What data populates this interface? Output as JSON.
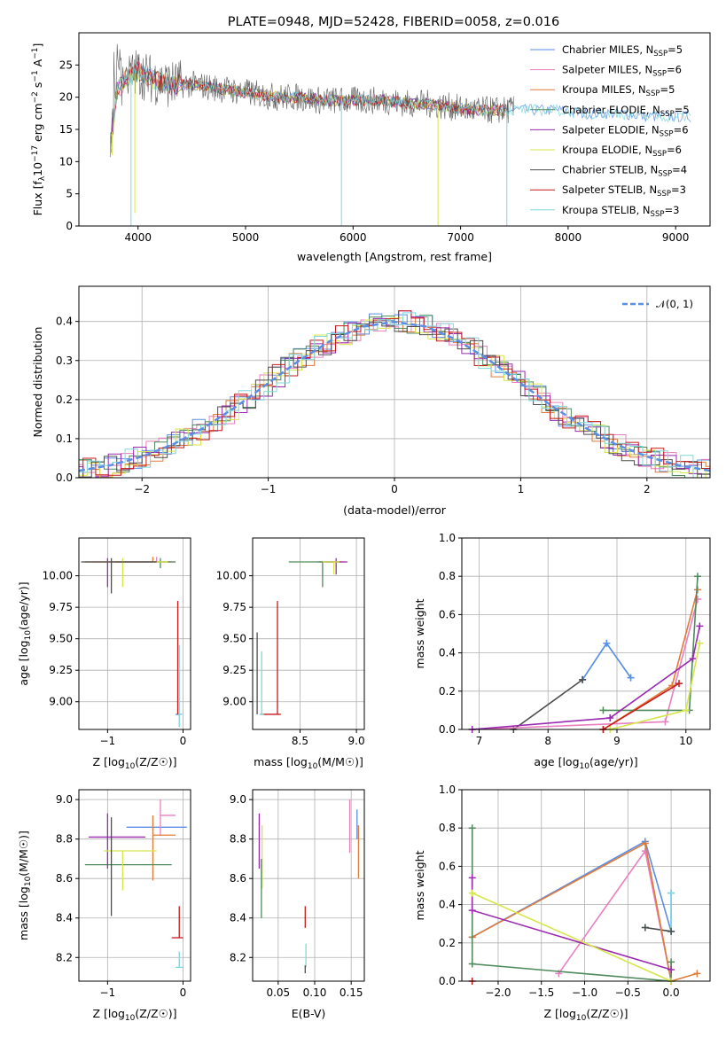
{
  "figure": {
    "title": "PLATE=0948, MJD=52428, FIBERID=0058, z=0.016"
  },
  "colors": {
    "Chabrier MILES": "#5b8ee6",
    "Salpeter MILES": "#e97fbf",
    "Kroupa MILES": "#e07b39",
    "Chabrier ELODIE": "#4f8a5b",
    "Salpeter ELODIE": "#9a2ab0",
    "Kroupa ELODIE": "#d7e64a",
    "Chabrier STELIB": "#4d4d4d",
    "Salpeter STELIB": "#c81a1a",
    "Kroupa STELIB": "#7fd8dc"
  },
  "legend1": [
    {
      "name": "Chabrier MILES",
      "n": "5"
    },
    {
      "name": "Salpeter MILES",
      "n": "6"
    },
    {
      "name": "Kroupa MILES",
      "n": "5"
    },
    {
      "name": "Chabrier ELODIE",
      "n": "5"
    },
    {
      "name": "Salpeter ELODIE",
      "n": "6"
    },
    {
      "name": "Kroupa ELODIE",
      "n": "6"
    },
    {
      "name": "Chabrier STELIB",
      "n": "4"
    },
    {
      "name": "Salpeter STELIB",
      "n": "3"
    },
    {
      "name": "Kroupa STELIB",
      "n": "3"
    }
  ],
  "chart_data": [
    {
      "type": "line",
      "panel": "spectrum",
      "title": "PLATE=0948, MJD=52428, FIBERID=0058, z=0.016",
      "xlabel": "wavelength [Angstrom, rest frame]",
      "ylabel": "Flux [f_λ 10^-17 erg cm^-2 s^-1 A^-1]",
      "xlim": [
        3450,
        9320
      ],
      "ylim": [
        0,
        30
      ],
      "xticks": [
        "4000",
        "5000",
        "6000",
        "7000",
        "8000",
        "9000"
      ],
      "yticks": [
        "0",
        "5",
        "10",
        "15",
        "20",
        "25"
      ],
      "data_x": [
        3750,
        3800,
        3900,
        4000,
        4100,
        4200,
        4300,
        4500,
        4700,
        4900,
        5100,
        5300,
        5500,
        5700,
        5900,
        6100,
        6300,
        6500,
        6700,
        6900,
        7100,
        7300,
        7500,
        7700,
        7900,
        8100,
        8300,
        8500,
        8700,
        8900,
        9100
      ],
      "data_y": [
        13,
        21,
        23,
        24,
        23,
        22.5,
        22,
        22,
        21.5,
        21,
        20.5,
        20,
        20,
        19.5,
        19.5,
        19.5,
        19.5,
        19,
        19,
        18.5,
        18,
        18,
        18,
        18,
        18,
        17.5,
        17.5,
        17.5,
        17,
        17,
        17
      ],
      "grid": false,
      "legend_position": "top-right"
    },
    {
      "type": "line",
      "panel": "residual histogram",
      "xlabel": "(data-model)/error",
      "ylabel": "Normed distribution",
      "xlim": [
        -2.5,
        2.5
      ],
      "ylim": [
        0,
        0.49
      ],
      "xticks": [
        "−2",
        "−1",
        "0",
        "1",
        "2"
      ],
      "yticks": [
        "0.0",
        "0.1",
        "0.2",
        "0.3",
        "0.4"
      ],
      "legend": "𝒩(0, 1)",
      "normal_x": [
        -2.5,
        -2.25,
        -2,
        -1.75,
        -1.5,
        -1.25,
        -1,
        -0.75,
        -0.5,
        -0.25,
        0,
        0.25,
        0.5,
        0.75,
        1,
        1.25,
        1.5,
        1.75,
        2,
        2.25,
        2.5
      ],
      "normal_y": [
        0.018,
        0.032,
        0.054,
        0.086,
        0.13,
        0.183,
        0.242,
        0.301,
        0.352,
        0.387,
        0.399,
        0.387,
        0.352,
        0.301,
        0.242,
        0.183,
        0.13,
        0.086,
        0.054,
        0.032,
        0.018
      ],
      "grid": true
    },
    {
      "type": "scatter",
      "panel": "age vs Z",
      "xlabel": "Z [log10(Z/Z☉)]",
      "ylabel": "age  [log10(age/yr)]",
      "xlim": [
        -1.38,
        0.1
      ],
      "ylim": [
        8.78,
        10.3
      ],
      "xticks": [
        "−1",
        "0"
      ],
      "yticks": [
        "9.00",
        "9.25",
        "9.50",
        "9.75",
        "10.00"
      ],
      "points": [
        {
          "model": "Chabrier MILES",
          "x": -0.05,
          "y": 8.9,
          "xerr": [
            0.05,
            0.03
          ],
          "yerr": [
            0.0,
            0.0
          ]
        },
        {
          "model": "Salpeter MILES",
          "x": -0.35,
          "y": 10.11,
          "xerr": [
            0.55,
            0.25
          ],
          "yerr": [
            0.0,
            0.04
          ]
        },
        {
          "model": "Kroupa MILES",
          "x": -0.4,
          "y": 10.11,
          "xerr": [
            0.8,
            0.25
          ],
          "yerr": [
            0.0,
            0.04
          ]
        },
        {
          "model": "Chabrier ELODIE",
          "x": -0.3,
          "y": 10.11,
          "xerr": [
            0.6,
            0.2
          ],
          "yerr": [
            0.05,
            0.03
          ]
        },
        {
          "model": "Salpeter ELODIE",
          "x": -1.0,
          "y": 10.11,
          "xerr": [
            0.3,
            0.6
          ],
          "yerr": [
            0.2,
            0.03
          ]
        },
        {
          "model": "Kroupa ELODIE",
          "x": -0.8,
          "y": 10.11,
          "xerr": [
            0.5,
            0.6
          ],
          "yerr": [
            0.2,
            0.03
          ]
        },
        {
          "model": "Chabrier STELIB",
          "x": -0.95,
          "y": 10.11,
          "xerr": [
            0.4,
            0.6
          ],
          "yerr": [
            0.25,
            0.03
          ]
        },
        {
          "model": "Salpeter STELIB",
          "x": -0.07,
          "y": 9.45,
          "xerr": [
            0.0,
            0.0
          ],
          "yerr": [
            0.55,
            0.35
          ]
        },
        {
          "model": "Kroupa STELIB",
          "x": -0.05,
          "y": 8.9,
          "xerr": [
            0.0,
            0.04
          ],
          "yerr": [
            0.1,
            0.55
          ]
        }
      ]
    },
    {
      "type": "scatter",
      "panel": "age vs mass",
      "xlabel": "mass [log10(M/M☉)]",
      "ylabel": "",
      "xlim": [
        8.08,
        9.07
      ],
      "ylim": [
        8.78,
        10.3
      ],
      "xticks": [
        "8.5",
        "9.0"
      ],
      "yticks": [
        "9.00",
        "9.25",
        "9.50",
        "9.75",
        "10.00"
      ],
      "points": [
        {
          "model": "Chabrier MILES",
          "x": 8.85,
          "y": 10.11,
          "xerr": [
            0.2,
            0.0
          ],
          "yerr": [
            0.0,
            0.0
          ]
        },
        {
          "model": "Salpeter MILES",
          "x": 8.85,
          "y": 10.11,
          "xerr": [
            0.1,
            0.05
          ],
          "yerr": [
            0.0,
            0.0
          ]
        },
        {
          "model": "Kroupa MILES",
          "x": 8.82,
          "y": 10.11,
          "xerr": [
            0.15,
            0.05
          ],
          "yerr": [
            0.0,
            0.0
          ]
        },
        {
          "model": "Chabrier ELODIE",
          "x": 8.7,
          "y": 10.11,
          "xerr": [
            0.3,
            0.1
          ],
          "yerr": [
            0.2,
            0.0
          ]
        },
        {
          "model": "Salpeter ELODIE",
          "x": 8.82,
          "y": 10.11,
          "xerr": [
            0.1,
            0.1
          ],
          "yerr": [
            0.1,
            0.03
          ]
        },
        {
          "model": "Kroupa ELODIE",
          "x": 8.8,
          "y": 10.11,
          "xerr": [
            0.1,
            0.05
          ],
          "yerr": [
            0.1,
            0.0
          ]
        },
        {
          "model": "Chabrier STELIB",
          "x": 8.12,
          "y": 8.9,
          "xerr": [
            0.0,
            0.0
          ],
          "yerr": [
            0.0,
            0.65
          ]
        },
        {
          "model": "Salpeter STELIB",
          "x": 8.3,
          "y": 8.9,
          "xerr": [
            0.15,
            0.03
          ],
          "yerr": [
            0.0,
            0.9
          ]
        },
        {
          "model": "Kroupa STELIB",
          "x": 8.16,
          "y": 8.9,
          "xerr": [
            0.02,
            0.02
          ],
          "yerr": [
            0.0,
            0.5
          ]
        }
      ]
    },
    {
      "type": "line",
      "panel": "mass weight vs age",
      "xlabel": "age  [log10(age/yr)]",
      "ylabel": "mass weight",
      "xlim": [
        6.75,
        10.35
      ],
      "ylim": [
        0,
        1.0
      ],
      "xticks": [
        "7",
        "8",
        "9",
        "10"
      ],
      "yticks": [
        "0.0",
        "0.2",
        "0.4",
        "0.6",
        "0.8",
        "1.0"
      ],
      "series": [
        {
          "model": "Kroupa STELIB",
          "x": [
            8.5,
            8.85,
            9.2
          ],
          "y": [
            0.26,
            0.45,
            0.27
          ]
        },
        {
          "model": "Chabrier MILES",
          "x": [
            8.5,
            8.85,
            9.2
          ],
          "y": [
            0.26,
            0.45,
            0.27
          ]
        },
        {
          "model": "Chabrier STELIB",
          "x": [
            7.5,
            8.5
          ],
          "y": [
            0.0,
            0.26
          ]
        },
        {
          "model": "Salpeter MILES",
          "x": [
            6.9,
            9.7,
            10.17
          ],
          "y": [
            0.0,
            0.04,
            0.68
          ]
        },
        {
          "model": "Kroupa MILES",
          "x": [
            8.8,
            9.8,
            10.17
          ],
          "y": [
            0.0,
            0.23,
            0.73
          ]
        },
        {
          "model": "Chabrier ELODIE",
          "x": [
            8.8,
            10.05,
            10.17
          ],
          "y": [
            0.1,
            0.1,
            0.8
          ]
        },
        {
          "model": "Salpeter ELODIE",
          "x": [
            6.9,
            8.9,
            10.1,
            10.2
          ],
          "y": [
            0.0,
            0.06,
            0.37,
            0.54
          ]
        },
        {
          "model": "Kroupa ELODIE",
          "x": [
            8.9,
            10.0,
            10.2
          ],
          "y": [
            0.0,
            0.1,
            0.45
          ]
        },
        {
          "model": "Salpeter STELIB",
          "x": [
            8.8,
            9.9
          ],
          "y": [
            0.0,
            0.24
          ]
        }
      ],
      "grid": true
    },
    {
      "type": "scatter",
      "panel": "mass vs Z",
      "xlabel": "Z [log10(Z/Z☉)]",
      "ylabel": "mass [log10(M/M☉)]",
      "xlim": [
        -1.38,
        0.1
      ],
      "ylim": [
        8.08,
        9.05
      ],
      "xticks": [
        "−1",
        "0"
      ],
      "yticks": [
        "8.2",
        "8.4",
        "8.6",
        "8.8",
        "9.0"
      ],
      "points": [
        {
          "model": "Chabrier MILES",
          "x": -0.4,
          "y": 8.86,
          "xerr": [
            0.35,
            0.45
          ],
          "yerr": [
            0.0,
            0.0
          ]
        },
        {
          "model": "Salpeter MILES",
          "x": -0.3,
          "y": 8.92,
          "xerr": [
            0.0,
            0.2
          ],
          "yerr": [
            0.1,
            0.08
          ]
        },
        {
          "model": "Kroupa MILES",
          "x": -0.4,
          "y": 8.82,
          "xerr": [
            0.0,
            0.3
          ],
          "yerr": [
            0.23,
            0.1
          ]
        },
        {
          "model": "Chabrier ELODIE",
          "x": -0.8,
          "y": 8.67,
          "xerr": [
            0.5,
            0.65
          ],
          "yerr": [
            0.0,
            0.0
          ]
        },
        {
          "model": "Salpeter ELODIE",
          "x": -1.0,
          "y": 8.81,
          "xerr": [
            0.25,
            0.5
          ],
          "yerr": [
            0.16,
            0.12
          ]
        },
        {
          "model": "Kroupa ELODIE",
          "x": -0.8,
          "y": 8.74,
          "xerr": [
            0.25,
            0.45
          ],
          "yerr": [
            0.2,
            0.0
          ]
        },
        {
          "model": "Chabrier STELIB",
          "x": -0.95,
          "y": 8.81,
          "xerr": [
            0.0,
            0.0
          ],
          "yerr": [
            0.4,
            0.1
          ]
        },
        {
          "model": "Salpeter STELIB",
          "x": -0.05,
          "y": 8.3,
          "xerr": [
            0.1,
            0.05
          ],
          "yerr": [
            0.0,
            0.16
          ]
        },
        {
          "model": "Kroupa STELIB",
          "x": -0.05,
          "y": 8.15,
          "xerr": [
            0.05,
            0.05
          ],
          "yerr": [
            0.0,
            0.08
          ]
        }
      ]
    },
    {
      "type": "scatter",
      "panel": "mass vs E(B-V)",
      "xlabel": "E(B-V)",
      "ylabel": "",
      "xlim": [
        0.015,
        0.168
      ],
      "ylim": [
        8.08,
        9.05
      ],
      "xticks": [
        "0.05",
        "0.10",
        "0.15"
      ],
      "yticks": [
        "8.2",
        "8.4",
        "8.6",
        "8.8",
        "9.0"
      ],
      "points": [
        {
          "model": "Salpeter MILES",
          "x": 0.148,
          "y": 8.88,
          "xerr": [
            0,
            0
          ],
          "yerr": [
            0.15,
            0.12
          ]
        },
        {
          "model": "Kroupa MILES",
          "x": 0.16,
          "y": 8.75,
          "xerr": [
            0,
            0
          ],
          "yerr": [
            0.15,
            0.12
          ]
        },
        {
          "model": "Chabrier MILES",
          "x": 0.158,
          "y": 8.85,
          "xerr": [
            0,
            0
          ],
          "yerr": [
            0.05,
            0.1
          ]
        },
        {
          "model": "Salpeter ELODIE",
          "x": 0.024,
          "y": 8.8,
          "xerr": [
            0,
            0
          ],
          "yerr": [
            0.15,
            0.13
          ]
        },
        {
          "model": "Kroupa ELODIE",
          "x": 0.028,
          "y": 8.75,
          "xerr": [
            0,
            0
          ],
          "yerr": [
            0.2,
            0.12
          ]
        },
        {
          "model": "Chabrier ELODIE",
          "x": 0.027,
          "y": 8.6,
          "xerr": [
            0,
            0
          ],
          "yerr": [
            0.2,
            0.1
          ]
        },
        {
          "model": "Salpeter STELIB",
          "x": 0.087,
          "y": 8.35,
          "xerr": [
            0,
            0
          ],
          "yerr": [
            0.0,
            0.11
          ]
        },
        {
          "model": "Kroupa STELIB",
          "x": 0.088,
          "y": 8.2,
          "xerr": [
            0,
            0
          ],
          "yerr": [
            0.05,
            0.07
          ]
        },
        {
          "model": "Chabrier STELIB",
          "x": 0.087,
          "y": 8.14,
          "xerr": [
            0,
            0
          ],
          "yerr": [
            0.02,
            0.02
          ]
        }
      ]
    },
    {
      "type": "line",
      "panel": "mass weight vs Z",
      "xlabel": "Z [log10(Z/Z☉)]",
      "ylabel": "mass weight",
      "xlim": [
        -2.42,
        0.45
      ],
      "ylim": [
        0,
        1.0
      ],
      "xticks": [
        "−2.0",
        "−1.5",
        "−1.0",
        "−0.5",
        "0.0"
      ],
      "yticks": [
        "0.0",
        "0.2",
        "0.4",
        "0.6",
        "0.8",
        "1.0"
      ],
      "series": [
        {
          "model": "Chabrier MILES",
          "x": [
            -2.3,
            -0.3,
            0.0,
            0.0
          ],
          "y": [
            0.23,
            0.73,
            0.26,
            0.46
          ]
        },
        {
          "model": "Kroupa STELIB",
          "x": [
            -0.3,
            0.0,
            0.0
          ],
          "y": [
            0.28,
            0.26,
            0.46
          ]
        },
        {
          "model": "Chabrier STELIB",
          "x": [
            -0.3,
            0.0
          ],
          "y": [
            0.28,
            0.26
          ]
        },
        {
          "model": "Salpeter MILES",
          "x": [
            -1.3,
            -0.3,
            0.0
          ],
          "y": [
            0.04,
            0.68,
            0.0
          ]
        },
        {
          "model": "Kroupa MILES",
          "x": [
            -2.3,
            -0.3,
            0.0,
            0.3
          ],
          "y": [
            0.23,
            0.72,
            0.0,
            0.04
          ]
        },
        {
          "model": "Chabrier ELODIE",
          "x": [
            -2.3,
            -2.3,
            0.0,
            0.0
          ],
          "y": [
            0.8,
            0.09,
            0.0,
            0.1
          ]
        },
        {
          "model": "Salpeter ELODIE",
          "x": [
            -2.3,
            -2.3,
            0.0
          ],
          "y": [
            0.54,
            0.37,
            0.06
          ]
        },
        {
          "model": "Kroupa ELODIE",
          "x": [
            -2.3,
            0.0
          ],
          "y": [
            0.46,
            0.0
          ]
        },
        {
          "model": "Salpeter STELIB",
          "x": [
            -2.3
          ],
          "y": [
            0.0
          ]
        }
      ],
      "grid": true
    }
  ]
}
